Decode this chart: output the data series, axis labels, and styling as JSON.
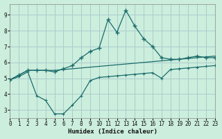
{
  "xlabel": "Humidex (Indice chaleur)",
  "bg_color": "#cceedd",
  "grid_color": "#aacccc",
  "line_color": "#1a6b6b",
  "line_A_x": [
    0,
    1,
    2,
    3,
    4,
    5,
    6,
    7,
    8,
    9,
    10,
    11,
    12,
    13,
    14,
    15,
    16,
    17,
    18,
    19,
    20,
    21,
    22,
    23
  ],
  "line_A_y": [
    4.9,
    5.2,
    5.5,
    5.5,
    5.5,
    5.4,
    5.6,
    5.8,
    6.3,
    6.7,
    6.9,
    8.7,
    7.9,
    9.3,
    8.3,
    7.5,
    7.0,
    6.3,
    6.2,
    6.2,
    6.3,
    6.4,
    6.3,
    6.3
  ],
  "line_B_x": [
    0,
    1,
    2,
    3,
    4,
    5,
    6,
    7,
    8,
    9,
    10,
    11,
    12,
    13,
    14,
    15,
    16,
    17,
    18,
    19,
    20,
    21,
    22,
    23
  ],
  "line_B_y": [
    4.9,
    5.2,
    5.5,
    5.5,
    5.5,
    5.5,
    5.55,
    5.6,
    5.65,
    5.7,
    5.75,
    5.8,
    5.85,
    5.9,
    5.95,
    6.0,
    6.05,
    6.1,
    6.15,
    6.2,
    6.25,
    6.3,
    6.35,
    6.4
  ],
  "line_C_x": [
    0,
    1,
    2,
    3,
    4,
    5,
    6,
    7,
    8,
    9,
    10,
    11,
    12,
    13,
    14,
    15,
    16,
    17,
    18,
    19,
    20,
    21,
    22,
    23
  ],
  "line_C_y": [
    4.9,
    5.1,
    5.4,
    3.9,
    3.6,
    2.75,
    2.75,
    3.3,
    3.9,
    4.85,
    5.05,
    5.1,
    5.15,
    5.2,
    5.25,
    5.3,
    5.35,
    5.0,
    5.55,
    5.6,
    5.65,
    5.7,
    5.75,
    5.8
  ],
  "xlim": [
    0,
    23
  ],
  "ylim": [
    2.5,
    9.7
  ],
  "yticks": [
    3,
    4,
    5,
    6,
    7,
    8,
    9
  ],
  "xticks": [
    0,
    1,
    2,
    3,
    4,
    5,
    6,
    7,
    8,
    9,
    10,
    11,
    12,
    13,
    14,
    15,
    16,
    17,
    18,
    19,
    20,
    21,
    22,
    23
  ]
}
